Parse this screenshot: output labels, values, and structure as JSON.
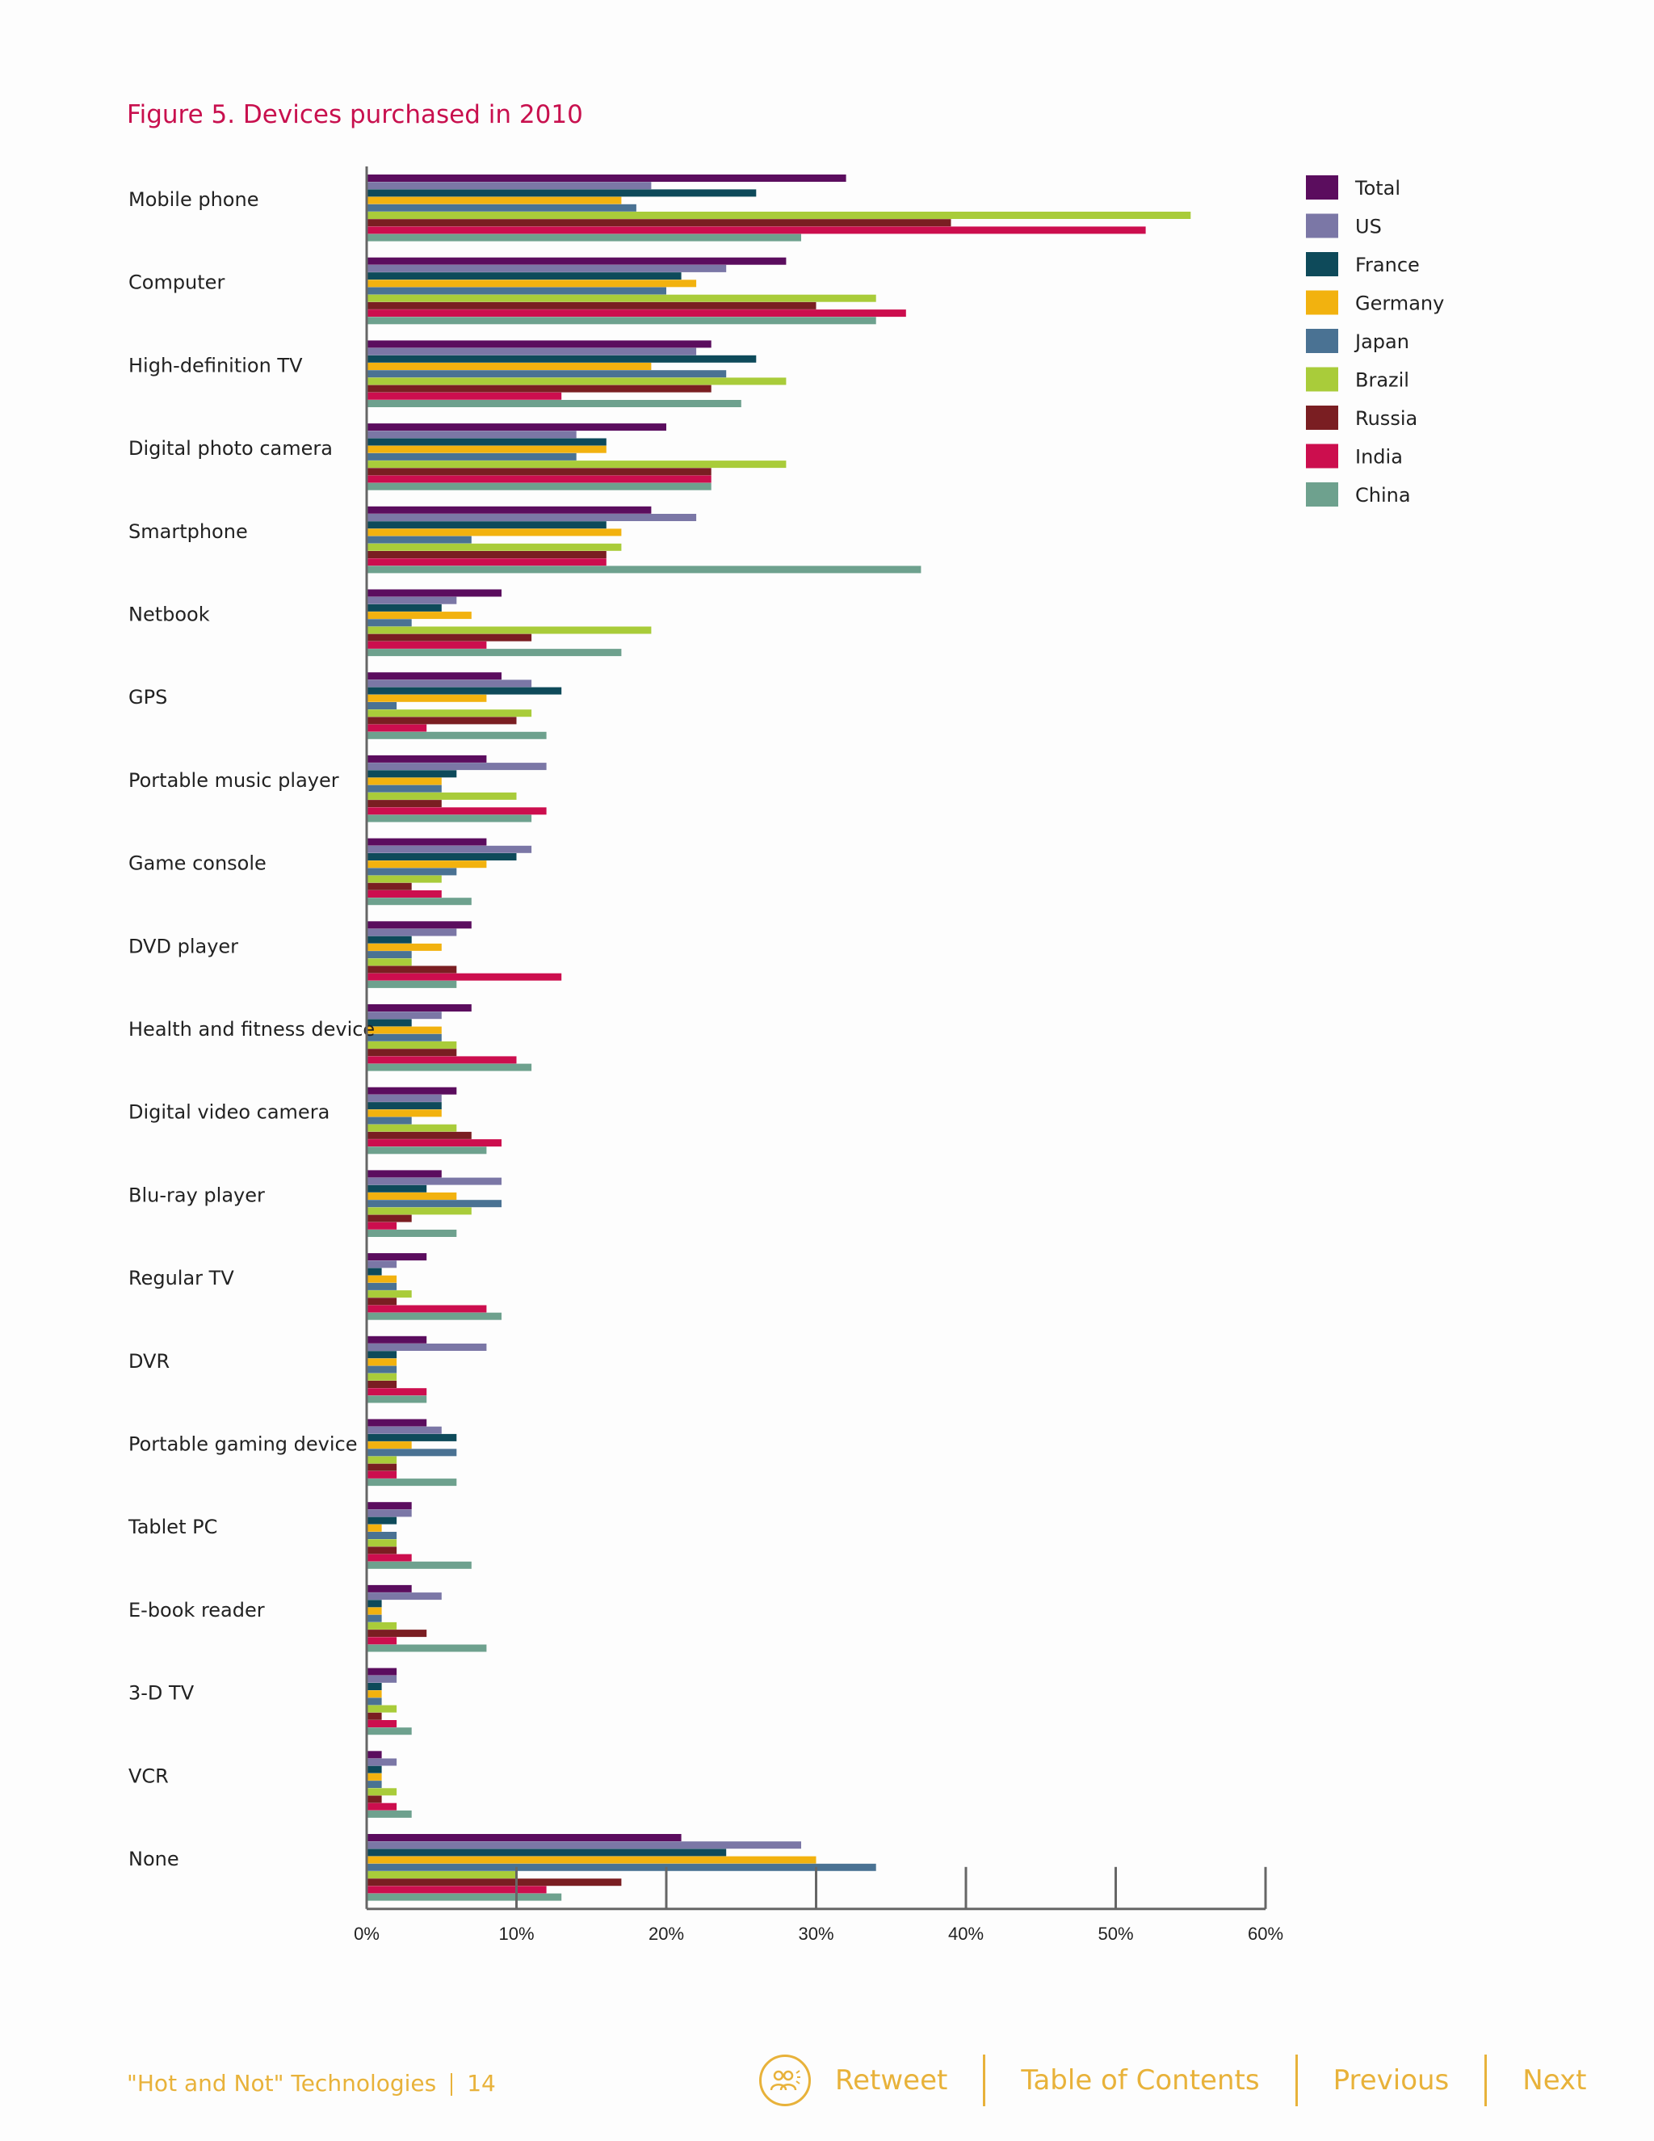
{
  "title": "Figure 5. Devices purchased in 2010",
  "chart_data": {
    "type": "bar",
    "orientation": "horizontal",
    "title": "Figure 5. Devices purchased in 2010",
    "xlabel": "",
    "ylabel": "",
    "xlim": [
      0,
      60
    ],
    "tick_values": [
      0,
      10,
      20,
      30,
      40,
      50,
      60
    ],
    "tick_labels": [
      "0%",
      "10%",
      "20%",
      "30%",
      "40%",
      "50%",
      "60%"
    ],
    "legend_position": "top-right",
    "categories": [
      "Mobile phone",
      "Computer",
      "High-definition TV",
      "Digital photo camera",
      "Smartphone",
      "Netbook",
      "GPS",
      "Portable music player",
      "Game console",
      "DVD player",
      "Health and fitness device",
      "Digital video camera",
      "Blu-ray player",
      "Regular TV",
      "DVR",
      "Portable gaming device",
      "Tablet PC",
      "E-book reader",
      "3-D TV",
      "VCR",
      "None"
    ],
    "series": [
      {
        "name": "Total",
        "color": "#5b0d5e",
        "values": [
          32,
          28,
          23,
          20,
          19,
          9,
          9,
          8,
          8,
          7,
          7,
          6,
          5,
          4,
          4,
          4,
          3,
          3,
          2,
          1,
          21
        ]
      },
      {
        "name": "US",
        "color": "#7b77a6",
        "values": [
          19,
          24,
          22,
          14,
          22,
          6,
          11,
          12,
          11,
          6,
          5,
          5,
          9,
          2,
          8,
          5,
          3,
          5,
          2,
          2,
          29
        ]
      },
      {
        "name": "France",
        "color": "#0e4a5a",
        "values": [
          26,
          21,
          26,
          16,
          16,
          5,
          13,
          6,
          10,
          3,
          3,
          5,
          4,
          1,
          2,
          6,
          2,
          1,
          1,
          1,
          24
        ]
      },
      {
        "name": "Germany",
        "color": "#f2b20f",
        "values": [
          17,
          22,
          19,
          16,
          17,
          7,
          8,
          5,
          8,
          5,
          5,
          5,
          6,
          2,
          2,
          3,
          1,
          1,
          1,
          1,
          30
        ]
      },
      {
        "name": "Japan",
        "color": "#4a7293",
        "values": [
          18,
          20,
          24,
          14,
          7,
          3,
          2,
          5,
          6,
          3,
          5,
          3,
          9,
          2,
          2,
          6,
          2,
          1,
          1,
          1,
          34
        ]
      },
      {
        "name": "Brazil",
        "color": "#a9cc3a",
        "values": [
          55,
          34,
          28,
          28,
          17,
          19,
          11,
          10,
          5,
          3,
          6,
          6,
          7,
          3,
          2,
          2,
          2,
          2,
          2,
          2,
          10
        ]
      },
      {
        "name": "Russia",
        "color": "#7a1e22",
        "values": [
          39,
          30,
          23,
          23,
          16,
          11,
          10,
          5,
          3,
          6,
          6,
          7,
          3,
          2,
          2,
          2,
          2,
          4,
          1,
          1,
          17
        ]
      },
      {
        "name": "India",
        "color": "#cc0e4e",
        "values": [
          52,
          36,
          13,
          23,
          16,
          8,
          4,
          12,
          5,
          13,
          10,
          9,
          2,
          8,
          4,
          2,
          3,
          2,
          2,
          2,
          12
        ]
      },
      {
        "name": "China",
        "color": "#6ea18e",
        "values": [
          29,
          34,
          25,
          23,
          37,
          17,
          12,
          11,
          7,
          6,
          11,
          8,
          6,
          9,
          4,
          6,
          7,
          8,
          3,
          3,
          13
        ]
      }
    ]
  },
  "footer": {
    "doc_title": "\"Hot and Not\" Technologies",
    "page_number": "14",
    "retweet": "Retweet",
    "toc": "Table of Contents",
    "previous": "Previous",
    "next": "Next"
  }
}
